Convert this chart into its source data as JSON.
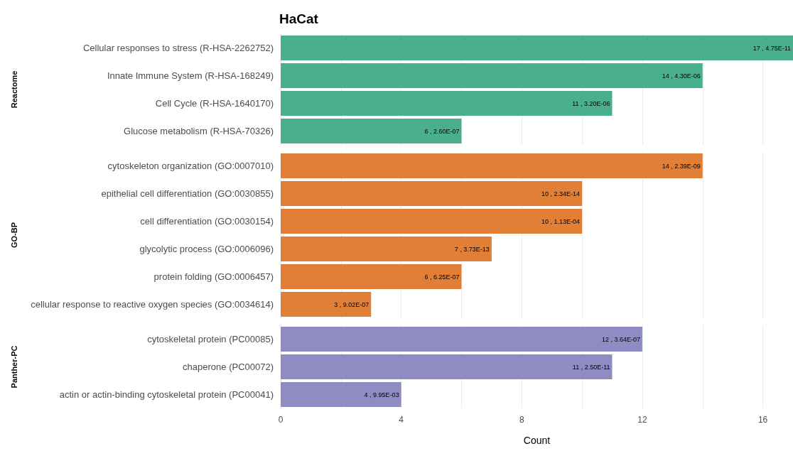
{
  "chart_data": [
    {
      "type": "bar",
      "orientation": "horizontal",
      "title": "HaCat",
      "ylabel": "Reactome",
      "categories": [
        "Cellular responses to stress (R-HSA-2262752)",
        "Innate Immune System (R-HSA-168249)",
        "Cell Cycle (R-HSA-1640170)",
        "Glucose metabolism (R-HSA-70326)"
      ],
      "values": [
        17,
        14,
        11,
        6
      ],
      "color": "#4aaf8f",
      "value_labels": [
        "17 , 4.75E-11",
        "14 , 4.30E-06",
        "11 , 3.20E-06",
        "6 , 2.60E-07"
      ],
      "xlim": [
        0,
        17
      ],
      "xticks": [
        0,
        {
          "value": 2,
          "label": null
        },
        4,
        {
          "value": 6,
          "label": null
        },
        8,
        {
          "value": 10,
          "label": null
        },
        12,
        {
          "value": 14,
          "label": null
        },
        16
      ],
      "grid": "x",
      "tick_labels": "y"
    },
    {
      "type": "bar",
      "orientation": "horizontal",
      "ylabel": "GO-BP",
      "categories": [
        "cytoskeleton organization (GO:0007010)",
        "epithelial cell differentiation (GO:0030855)",
        "cell differentiation (GO:0030154)",
        "glycolytic process (GO:0006096)",
        "protein folding (GO:0006457)",
        "cellular response to reactive oxygen species (GO:0034614)"
      ],
      "values": [
        14,
        10,
        10,
        7,
        6,
        3
      ],
      "color": "#e07f35",
      "value_labels": [
        "14 , 2.39E-09",
        "10 , 2.34E-14",
        "10 , 1.13E-04",
        "7 , 3.73E-13",
        "6 , 6.25E-07",
        "3 , 9.02E-07"
      ],
      "xlim": [
        0,
        17
      ],
      "xticks": [
        0,
        {
          "value": 2,
          "label": null
        },
        4,
        {
          "value": 6,
          "label": null
        },
        8,
        {
          "value": 10,
          "label": null
        },
        12,
        {
          "value": 14,
          "label": null
        },
        16
      ],
      "grid": "x",
      "tick_labels": "y"
    },
    {
      "type": "bar",
      "orientation": "horizontal",
      "ylabel": "Panther-PC",
      "xlabel": "Count",
      "categories": [
        "cytoskeletal protein (PC00085)",
        "chaperone (PC00072)",
        "actin or actin-binding cytoskeletal protein (PC00041)"
      ],
      "values": [
        12,
        11,
        4
      ],
      "color": "#8f8bc3",
      "value_labels": [
        "12 , 3.64E-07",
        "11 , 2.50E-11",
        "4 , 9.95E-03"
      ],
      "xlim": [
        0,
        17
      ],
      "xticks": [
        0,
        {
          "value": 2,
          "label": null
        },
        4,
        {
          "value": 6,
          "label": null
        },
        8,
        {
          "value": 10,
          "label": null
        },
        12,
        {
          "value": 14,
          "label": null
        },
        16
      ],
      "grid": "x"
    }
  ]
}
